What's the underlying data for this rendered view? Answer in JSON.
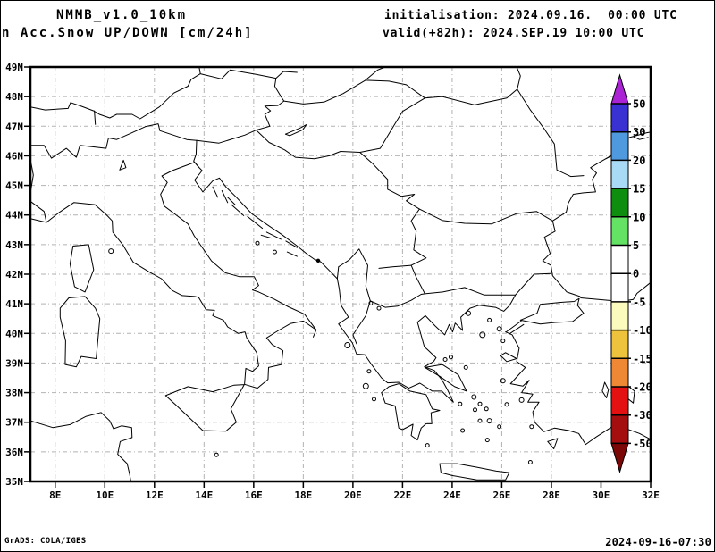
{
  "header": {
    "model_title": "NMMB_v1.0_10km",
    "field_title": "n Acc.Snow UP/DOWN [cm/24h]",
    "init_line": "initialisation: 2024.09.16.  00:00 UTC",
    "valid_line": "valid(+82h): 2024.SEP.19 10:00 UTC"
  },
  "footer": {
    "credit": "GrADS: COLA/IGES",
    "timestamp": "2024-09-16-07:30"
  },
  "map": {
    "domain": {
      "lon_min": 7,
      "lon_max": 32,
      "lat_min": 35,
      "lat_max": 49
    },
    "lat_ticks": [
      {
        "v": 49,
        "label": "49N"
      },
      {
        "v": 48,
        "label": "48N"
      },
      {
        "v": 47,
        "label": "47N"
      },
      {
        "v": 46,
        "label": "46N"
      },
      {
        "v": 45,
        "label": "45N"
      },
      {
        "v": 44,
        "label": "44N"
      },
      {
        "v": 43,
        "label": "43N"
      },
      {
        "v": 42,
        "label": "42N"
      },
      {
        "v": 41,
        "label": "41N"
      },
      {
        "v": 40,
        "label": "40N"
      },
      {
        "v": 39,
        "label": "39N"
      },
      {
        "v": 38,
        "label": "38N"
      },
      {
        "v": 37,
        "label": "37N"
      },
      {
        "v": 36,
        "label": "36N"
      },
      {
        "v": 35,
        "label": "35N"
      }
    ],
    "lon_ticks": [
      {
        "v": 8,
        "label": "8E"
      },
      {
        "v": 10,
        "label": "10E"
      },
      {
        "v": 12,
        "label": "12E"
      },
      {
        "v": 14,
        "label": "14E"
      },
      {
        "v": 16,
        "label": "16E"
      },
      {
        "v": 18,
        "label": "18E"
      },
      {
        "v": 20,
        "label": "20E"
      },
      {
        "v": 22,
        "label": "22E"
      },
      {
        "v": 24,
        "label": "24E"
      },
      {
        "v": 26,
        "label": "26E"
      },
      {
        "v": 28,
        "label": "28E"
      },
      {
        "v": 30,
        "label": "30E"
      },
      {
        "v": 32,
        "label": "32E"
      }
    ]
  },
  "colorbar": {
    "boundary_labels": [
      "50",
      "30",
      "20",
      "15",
      "10",
      "5",
      "0",
      "-5",
      "-10",
      "-15",
      "-20",
      "-30",
      "-50"
    ],
    "segment_colors": [
      "#3a31d2",
      "#4f9ade",
      "#a9daf5",
      "#0e8e0e",
      "#63e263",
      "#ffffff",
      "#ffffff",
      "#fbfbbe",
      "#edc33d",
      "#ef8834",
      "#e31111",
      "#a40e0e"
    ],
    "arrow_top_color": "#aa23d5",
    "arrow_bottom_color": "#7b0707"
  }
}
